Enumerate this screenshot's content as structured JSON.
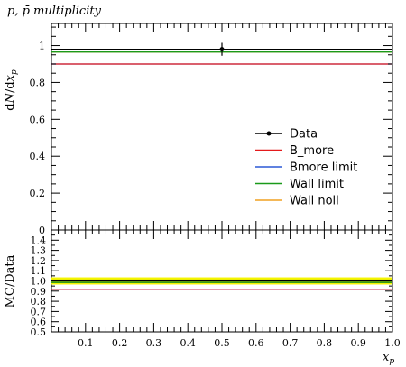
{
  "chart_data": {
    "type": "line",
    "title": "p, p̄ multiplicity",
    "xlabel": "x_p",
    "ylabel_main": "dN/dx_p",
    "ylabel_ratio": "MC/Data",
    "xlim": [
      0.0,
      1.0
    ],
    "ylim_main": [
      0.0,
      1.12
    ],
    "ylim_ratio": [
      0.5,
      1.5
    ],
    "x_ticks": [
      "0.1",
      "0.2",
      "0.3",
      "0.4",
      "0.5",
      "0.6",
      "0.7",
      "0.8",
      "0.9",
      "1.0"
    ],
    "x_tick_values": [
      0.1,
      0.2,
      0.3,
      0.4,
      0.5,
      0.6,
      0.7,
      0.8,
      0.9,
      1.0
    ],
    "y_ticks_main": [
      "0",
      "0.2",
      "0.4",
      "0.6",
      "0.8",
      "1"
    ],
    "y_tick_values_main": [
      0,
      0.2,
      0.4,
      0.6,
      0.8,
      1.0
    ],
    "y_ticks_ratio": [
      "0.5",
      "0.6",
      "0.7",
      "0.8",
      "0.9",
      "1.0",
      "1.1",
      "1.2",
      "1.3",
      "1.4"
    ],
    "y_tick_values_ratio": [
      0.5,
      0.6,
      0.7,
      0.8,
      0.9,
      1.0,
      1.1,
      1.2,
      1.3,
      1.4
    ],
    "data_point": {
      "x": 0.5,
      "y": 0.98,
      "yerr": 0.035
    },
    "data_band": {
      "ratio_low": 0.965,
      "ratio_high": 1.035,
      "inner_low": 0.985,
      "inner_high": 1.015
    },
    "series": [
      {
        "name": "Data",
        "value": 0.98,
        "ratio": 1.0,
        "color": "#000000"
      },
      {
        "name": "B_more",
        "value": 0.9,
        "ratio": 0.918,
        "color": "#e41a1c"
      },
      {
        "name": "Bmore limit",
        "value": 0.9,
        "ratio": 0.918,
        "color": "#2b59d6"
      },
      {
        "name": "Wall limit",
        "value": 0.965,
        "ratio": 0.985,
        "color": "#1a9a1a"
      },
      {
        "name": "Wall noli",
        "value": 0.965,
        "ratio": 0.985,
        "color": "#f0a020"
      }
    ],
    "legend_position": "right",
    "band_color_outer": "#f5f500",
    "band_color_inner": "#c8c800"
  }
}
